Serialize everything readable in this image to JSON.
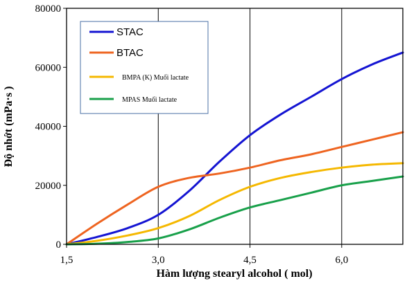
{
  "chart_data": {
    "type": "line",
    "xlabel": "Hàm lượng stearyl alcohol ( mol)",
    "ylabel": "Độ nhớt (mPa·s )",
    "xlim": [
      1.5,
      7.0
    ],
    "ylim": [
      0,
      80000
    ],
    "x_ticks": [
      "1,5",
      "3,0",
      "4,5",
      "6,0"
    ],
    "x_tick_values": [
      1.5,
      3.0,
      4.5,
      6.0
    ],
    "y_ticks": [
      "0",
      "20000",
      "40000",
      "60000",
      "80000"
    ],
    "y_tick_values": [
      0,
      20000,
      40000,
      60000,
      80000
    ],
    "grid": "vertical",
    "legend": "top-left",
    "series": [
      {
        "name": "STAC",
        "color": "#1414d2",
        "legend_style": "large",
        "x": [
          1.5,
          2.0,
          2.5,
          3.0,
          3.5,
          4.0,
          4.5,
          5.0,
          5.5,
          6.0,
          6.5,
          7.0
        ],
        "values": [
          0,
          2500,
          5500,
          10000,
          18000,
          28000,
          37000,
          44000,
          50000,
          56000,
          61000,
          65000
        ]
      },
      {
        "name": "BTAC",
        "color": "#ee6420",
        "legend_style": "large",
        "x": [
          1.5,
          2.0,
          2.5,
          3.0,
          3.5,
          4.0,
          4.5,
          5.0,
          5.5,
          6.0,
          6.5,
          7.0
        ],
        "values": [
          0,
          7000,
          13500,
          19500,
          22500,
          24000,
          26000,
          28500,
          30500,
          33000,
          35500,
          38000
        ]
      },
      {
        "name": "BMPA (K) Muối lactate",
        "color": "#f5b800",
        "legend_style": "small",
        "x": [
          1.5,
          2.0,
          2.5,
          3.0,
          3.5,
          4.0,
          4.5,
          5.0,
          5.5,
          6.0,
          6.5,
          7.0
        ],
        "values": [
          0,
          1200,
          3000,
          5500,
          9500,
          15000,
          19500,
          22500,
          24500,
          26000,
          27000,
          27500
        ]
      },
      {
        "name": "MPAS Muối lactate",
        "color": "#18a04a",
        "legend_style": "small",
        "x": [
          1.5,
          2.0,
          2.5,
          3.0,
          3.5,
          4.0,
          4.5,
          5.0,
          5.5,
          6.0,
          6.5,
          7.0
        ],
        "values": [
          0,
          200,
          800,
          2000,
          5000,
          9000,
          12500,
          15000,
          17500,
          20000,
          21500,
          23000
        ]
      }
    ]
  }
}
